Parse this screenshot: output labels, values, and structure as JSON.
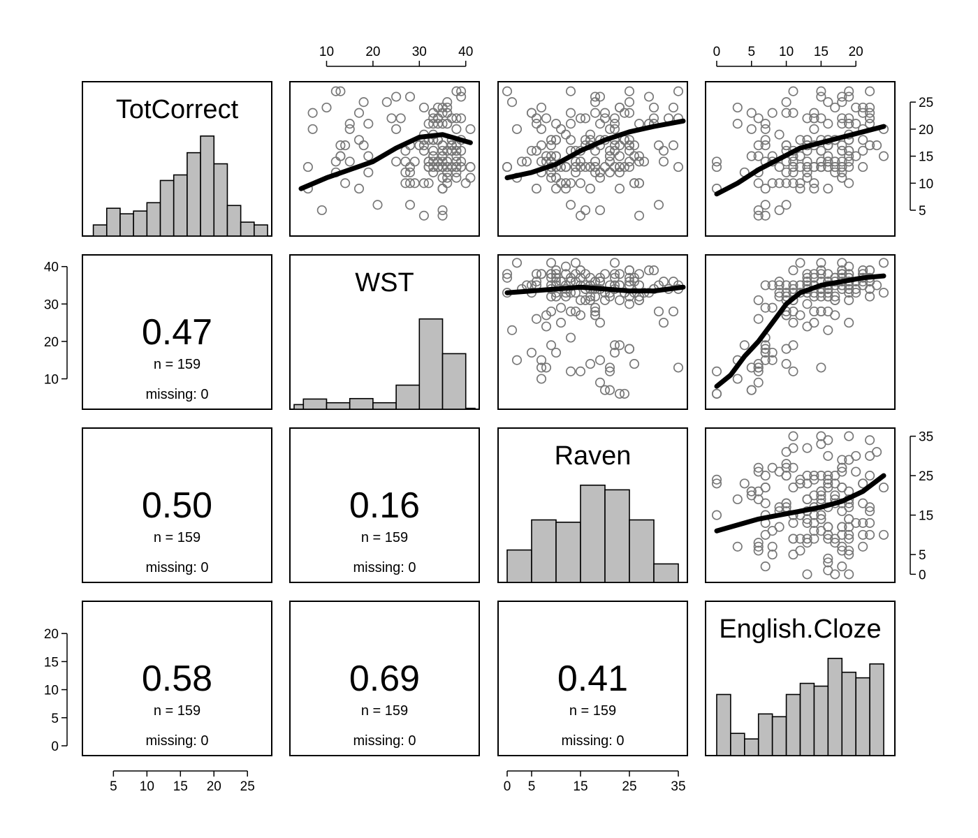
{
  "chart_data": {
    "type": "scatter-matrix",
    "variables": [
      "TotCorrect",
      "WST",
      "Raven",
      "English.Cloze"
    ],
    "axis_ranges": {
      "TotCorrect": [
        1,
        28
      ],
      "WST": [
        3,
        42
      ],
      "Raven": [
        -1,
        36
      ],
      "English.Cloze": [
        -1,
        25
      ]
    },
    "axis_ticks": {
      "TotCorrect": [
        5,
        10,
        15,
        20,
        25
      ],
      "WST": [
        10,
        20,
        30,
        40
      ],
      "Raven": [
        0,
        5,
        15,
        25,
        35
      ],
      "English.Cloze": [
        0,
        5,
        10,
        15,
        20
      ]
    },
    "correlations": [
      {
        "row": 1,
        "col": 0,
        "r": "0.47",
        "n": "n = 159",
        "missing": "missing: 0"
      },
      {
        "row": 2,
        "col": 0,
        "r": "0.50",
        "n": "n = 159",
        "missing": "missing: 0"
      },
      {
        "row": 2,
        "col": 1,
        "r": "0.16",
        "n": "n = 159",
        "missing": "missing: 0"
      },
      {
        "row": 3,
        "col": 0,
        "r": "0.58",
        "n": "n = 159",
        "missing": "missing: 0"
      },
      {
        "row": 3,
        "col": 1,
        "r": "0.69",
        "n": "n = 159",
        "missing": "missing: 0"
      },
      {
        "row": 3,
        "col": 2,
        "r": "0.41",
        "n": "n = 159",
        "missing": "missing: 0"
      }
    ],
    "histograms": {
      "TotCorrect": {
        "breaks": [
          2,
          4,
          6,
          8,
          10,
          12,
          14,
          16,
          18,
          20,
          22,
          24,
          26,
          28
        ],
        "counts": [
          2,
          5,
          4,
          4.5,
          6,
          10,
          11,
          15,
          18,
          13,
          5.5,
          2.5,
          2
        ],
        "ymax": 20
      },
      "WST": {
        "breaks": [
          3,
          5,
          10,
          15,
          20,
          25,
          30,
          35,
          40,
          42
        ],
        "counts": [
          1,
          2.2,
          1.4,
          2.3,
          1.4,
          5.2,
          19.5,
          12,
          0.2
        ],
        "ymax": 24
      },
      "Raven": {
        "breaks": [
          0,
          5,
          10,
          15,
          20,
          25,
          30,
          35
        ],
        "counts": [
          7,
          13.5,
          13,
          21,
          20,
          13.5,
          4
        ],
        "ymax": 24
      },
      "English.Cloze": {
        "breaks": [
          0,
          2,
          4,
          6,
          8,
          10,
          12,
          14,
          16,
          18,
          20,
          22,
          24
        ],
        "counts": [
          11,
          4,
          3,
          7.5,
          7,
          11,
          13,
          12.5,
          17.5,
          15,
          14,
          16.5
        ],
        "ymax": 20
      }
    },
    "smoothers": [
      {
        "x": "WST",
        "y": "TotCorrect",
        "points": [
          [
            4.5,
            9
          ],
          [
            10,
            11
          ],
          [
            15,
            12.5
          ],
          [
            20,
            14
          ],
          [
            25,
            16.5
          ],
          [
            30,
            18.5
          ],
          [
            35,
            19
          ],
          [
            41,
            17.5
          ]
        ]
      },
      {
        "x": "Raven",
        "y": "TotCorrect",
        "points": [
          [
            0,
            11
          ],
          [
            5,
            12
          ],
          [
            10,
            13.5
          ],
          [
            15,
            16
          ],
          [
            20,
            18
          ],
          [
            25,
            19.5
          ],
          [
            30,
            20.5
          ],
          [
            36,
            21.5
          ]
        ]
      },
      {
        "x": "English.Cloze",
        "y": "TotCorrect",
        "points": [
          [
            0,
            8
          ],
          [
            3,
            10
          ],
          [
            6,
            12.5
          ],
          [
            9,
            14.5
          ],
          [
            12,
            16.5
          ],
          [
            15,
            17.5
          ],
          [
            18,
            18.5
          ],
          [
            21,
            19.5
          ],
          [
            24,
            20.5
          ]
        ]
      },
      {
        "x": "Raven",
        "y": "WST",
        "points": [
          [
            0,
            33
          ],
          [
            5,
            33.5
          ],
          [
            10,
            34
          ],
          [
            15,
            34.5
          ],
          [
            20,
            34
          ],
          [
            25,
            33.5
          ],
          [
            30,
            33.5
          ],
          [
            36,
            34.5
          ]
        ]
      },
      {
        "x": "English.Cloze",
        "y": "WST",
        "points": [
          [
            0,
            8
          ],
          [
            2,
            11
          ],
          [
            4,
            16
          ],
          [
            6,
            20
          ],
          [
            8,
            25
          ],
          [
            10,
            30
          ],
          [
            12,
            33
          ],
          [
            15,
            35
          ],
          [
            18,
            36
          ],
          [
            21,
            37
          ],
          [
            24,
            37.5
          ]
        ]
      },
      {
        "x": "English.Cloze",
        "y": "Raven",
        "points": [
          [
            0,
            11
          ],
          [
            3,
            12.5
          ],
          [
            6,
            14
          ],
          [
            9,
            15
          ],
          [
            12,
            16
          ],
          [
            15,
            17
          ],
          [
            18,
            18.5
          ],
          [
            21,
            21
          ],
          [
            24,
            25
          ]
        ]
      }
    ]
  }
}
